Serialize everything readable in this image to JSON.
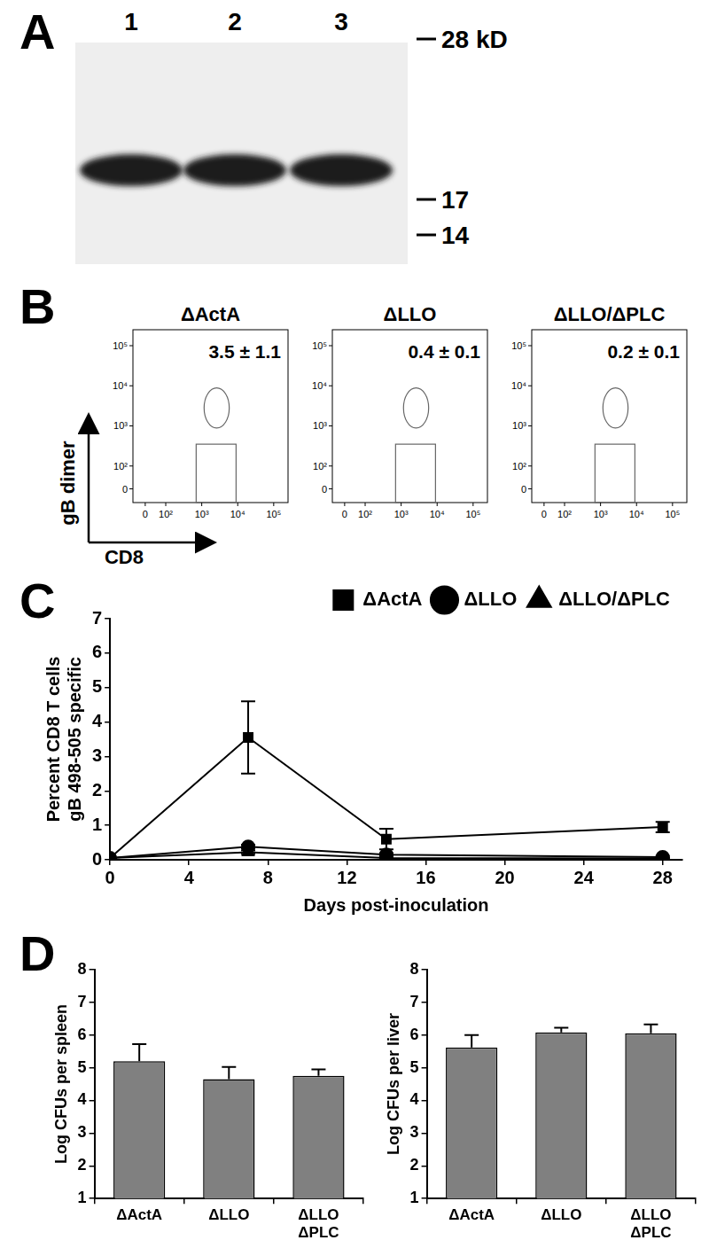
{
  "panel_labels": [
    "A",
    "B",
    "C",
    "D"
  ],
  "blot": {
    "lanes": [
      "1",
      "2",
      "3"
    ],
    "markers": [
      {
        "value": 28,
        "label": "28 kD"
      },
      17,
      14
    ],
    "band_kd": [
      19,
      19,
      19
    ]
  },
  "flow": {
    "x_label": "CD8",
    "y_label": "gB dimer",
    "xlim": [
      -60,
      250000
    ],
    "ylim": [
      -60,
      250000
    ],
    "xticks": [
      0,
      {
        "value": 100,
        "label": "10²"
      },
      {
        "value": 1000,
        "label": "10³"
      },
      {
        "value": 10000,
        "label": "10⁴"
      },
      {
        "value": 100000,
        "label": "10⁵"
      }
    ],
    "yticks": [
      0,
      {
        "value": 100,
        "label": "10²"
      },
      {
        "value": 1000,
        "label": "10³"
      },
      {
        "value": 10000,
        "label": "10⁴"
      },
      {
        "value": 100000,
        "label": "10⁵"
      }
    ],
    "plots": [
      {
        "title": "ΔActA",
        "gate_label": "3.5 ± 1.1"
      },
      {
        "title": "ΔLLO",
        "gate_label": "0.4 ± 0.1"
      },
      {
        "title": "ΔLLO/ΔPLC",
        "gate_label": "0.2 ± 0.1"
      }
    ]
  },
  "chart_data": [
    {
      "type": "line",
      "x_label": "Days post-inoculation",
      "y_label": [
        "Percent CD8 T cells",
        "gB 498-505 specific"
      ],
      "x": [
        0,
        7,
        14,
        28
      ],
      "xlim": [
        0,
        29
      ],
      "xticks": [
        0,
        4,
        8,
        12,
        16,
        20,
        24,
        28
      ],
      "ylim": [
        0,
        7
      ],
      "yticks": [
        0,
        1,
        2,
        3,
        4,
        5,
        6,
        7
      ],
      "grid": false,
      "legend": "top-right",
      "series": [
        {
          "name": "ΔActA",
          "color": "#000000",
          "marker": "square",
          "values": [
            0.05,
            3.55,
            0.6,
            0.95
          ],
          "errors": [
            0,
            1.05,
            0.3,
            0.15
          ]
        },
        {
          "name": "ΔLLO",
          "color": "#000000",
          "marker": "circle",
          "values": [
            0.05,
            0.38,
            0.15,
            0.08
          ],
          "errors": [
            0,
            0.06,
            0.04,
            0.03
          ]
        },
        {
          "name": "ΔLLO/ΔPLC",
          "color": "#000000",
          "marker": "triangle",
          "values": [
            0.05,
            0.22,
            0.05,
            0.04
          ],
          "errors": [
            0,
            0.05,
            0.02,
            0.02
          ]
        }
      ]
    },
    {
      "type": "bar",
      "y_label": "Log CFUs per spleen",
      "categories": [
        "ΔActA",
        "ΔLLO",
        [
          "ΔLLO",
          "ΔPLC"
        ]
      ],
      "values": [
        5.2,
        4.65,
        4.75
      ],
      "errors": [
        0.52,
        0.37,
        0.2
      ],
      "color": "#808080",
      "ylim": [
        1,
        8
      ],
      "yticks": [
        1,
        2,
        3,
        4,
        5,
        6,
        7,
        8
      ],
      "grid": false
    },
    {
      "type": "bar",
      "y_label": "Log CFUs per liver",
      "categories": [
        "ΔActA",
        "ΔLLO",
        [
          "ΔLLO",
          "ΔPLC"
        ]
      ],
      "values": [
        5.62,
        6.08,
        6.05
      ],
      "errors": [
        0.38,
        0.14,
        0.27
      ],
      "color": "#808080",
      "ylim": [
        1,
        8
      ],
      "yticks": [
        1,
        2,
        3,
        4,
        5,
        6,
        7,
        8
      ],
      "grid": false
    }
  ]
}
